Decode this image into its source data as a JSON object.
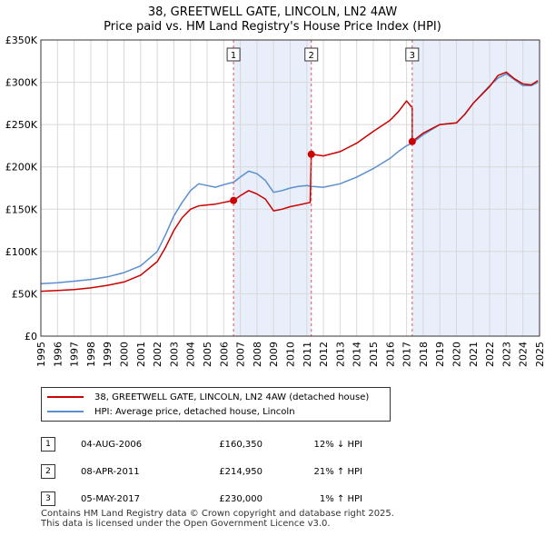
{
  "title": {
    "line1": "38, GREETWELL GATE, LINCOLN, LN2 4AW",
    "line2": "Price paid vs. HM Land Registry's House Price Index (HPI)"
  },
  "chart_data": {
    "type": "line",
    "title": "38, GREETWELL GATE, LINCOLN, LN2 4AW",
    "subtitle": "Price paid vs. HM Land Registry's House Price Index (HPI)",
    "xlabel": "",
    "ylabel": "",
    "xlim": [
      1995,
      2025
    ],
    "ylim": [
      0,
      350000
    ],
    "x_ticks": [
      "1995",
      "1996",
      "1997",
      "1998",
      "1999",
      "2000",
      "2001",
      "2002",
      "2003",
      "2004",
      "2005",
      "2006",
      "2007",
      "2008",
      "2009",
      "2010",
      "2011",
      "2012",
      "2013",
      "2014",
      "2015",
      "2016",
      "2017",
      "2018",
      "2019",
      "2020",
      "2021",
      "2022",
      "2023",
      "2024",
      "2025"
    ],
    "y_ticks": [
      {
        "value": 0,
        "label": "£0"
      },
      {
        "value": 50000,
        "label": "£50K"
      },
      {
        "value": 100000,
        "label": "£100K"
      },
      {
        "value": 150000,
        "label": "£150K"
      },
      {
        "value": 200000,
        "label": "£200K"
      },
      {
        "value": 250000,
        "label": "£250K"
      },
      {
        "value": 300000,
        "label": "£300K"
      },
      {
        "value": 350000,
        "label": "£350K"
      }
    ],
    "grid": true,
    "series": [
      {
        "name": "38, GREETWELL GATE, LINCOLN, LN2 4AW (detached house)",
        "color": "#cc0000",
        "points": [
          [
            1995,
            53000
          ],
          [
            1996,
            54000
          ],
          [
            1997,
            55000
          ],
          [
            1998,
            57000
          ],
          [
            1999,
            60000
          ],
          [
            2000,
            64000
          ],
          [
            2001,
            72000
          ],
          [
            2002,
            88000
          ],
          [
            2002.5,
            105000
          ],
          [
            2003,
            125000
          ],
          [
            2003.5,
            140000
          ],
          [
            2004,
            150000
          ],
          [
            2004.5,
            154000
          ],
          [
            2005,
            155000
          ],
          [
            2005.5,
            156000
          ],
          [
            2006,
            158000
          ],
          [
            2006.6,
            160350
          ],
          [
            2007,
            166000
          ],
          [
            2007.5,
            172000
          ],
          [
            2008,
            168000
          ],
          [
            2008.5,
            162000
          ],
          [
            2009,
            148000
          ],
          [
            2009.5,
            150000
          ],
          [
            2010,
            153000
          ],
          [
            2010.5,
            155000
          ],
          [
            2011.2,
            158000
          ],
          [
            2011.27,
            214950
          ],
          [
            2012,
            213000
          ],
          [
            2013,
            218000
          ],
          [
            2014,
            228000
          ],
          [
            2015,
            242000
          ],
          [
            2016,
            255000
          ],
          [
            2016.5,
            265000
          ],
          [
            2017,
            278000
          ],
          [
            2017.34,
            270000
          ],
          [
            2017.34,
            230000
          ],
          [
            2018,
            240000
          ],
          [
            2019,
            250000
          ],
          [
            2020,
            252000
          ],
          [
            2020.5,
            262000
          ],
          [
            2021,
            275000
          ],
          [
            2022,
            295000
          ],
          [
            2022.5,
            308000
          ],
          [
            2023,
            312000
          ],
          [
            2023.5,
            304000
          ],
          [
            2024,
            298000
          ],
          [
            2024.5,
            297000
          ],
          [
            2024.9,
            302000
          ]
        ]
      },
      {
        "name": "HPI: Average price, detached house, Lincoln",
        "color": "#5b8fd0",
        "points": [
          [
            1995,
            62000
          ],
          [
            1996,
            63000
          ],
          [
            1997,
            65000
          ],
          [
            1998,
            67000
          ],
          [
            1999,
            70000
          ],
          [
            2000,
            75000
          ],
          [
            2001,
            83000
          ],
          [
            2002,
            100000
          ],
          [
            2002.5,
            120000
          ],
          [
            2003,
            142000
          ],
          [
            2003.5,
            158000
          ],
          [
            2004,
            172000
          ],
          [
            2004.5,
            180000
          ],
          [
            2005,
            178000
          ],
          [
            2005.5,
            176000
          ],
          [
            2006,
            179000
          ],
          [
            2006.6,
            182000
          ],
          [
            2007,
            188000
          ],
          [
            2007.5,
            195000
          ],
          [
            2008,
            192000
          ],
          [
            2008.5,
            184000
          ],
          [
            2009,
            170000
          ],
          [
            2009.5,
            172000
          ],
          [
            2010,
            175000
          ],
          [
            2010.5,
            177000
          ],
          [
            2011,
            178000
          ],
          [
            2011.27,
            177000
          ],
          [
            2012,
            176000
          ],
          [
            2013,
            180000
          ],
          [
            2014,
            188000
          ],
          [
            2015,
            198000
          ],
          [
            2016,
            210000
          ],
          [
            2016.5,
            218000
          ],
          [
            2017,
            225000
          ],
          [
            2017.34,
            228000
          ],
          [
            2018,
            238000
          ],
          [
            2019,
            250000
          ],
          [
            2020,
            252000
          ],
          [
            2020.5,
            262000
          ],
          [
            2021,
            275000
          ],
          [
            2022,
            296000
          ],
          [
            2022.5,
            305000
          ],
          [
            2023,
            310000
          ],
          [
            2023.5,
            303000
          ],
          [
            2024,
            296000
          ],
          [
            2024.5,
            296000
          ],
          [
            2024.9,
            300000
          ]
        ]
      }
    ],
    "shaded_ranges": [
      [
        2006.59,
        2011.27
      ],
      [
        2017.34,
        2025
      ]
    ],
    "sale_markers": [
      {
        "label": "1",
        "x": 2006.59,
        "value": 160350
      },
      {
        "label": "2",
        "x": 2011.27,
        "value": 214950
      },
      {
        "label": "3",
        "x": 2017.34,
        "value": 230000
      }
    ]
  },
  "legend": {
    "property_label": "38, GREETWELL GATE, LINCOLN, LN2 4AW (detached house)",
    "hpi_label": "HPI: Average price, detached house, Lincoln",
    "property_color": "#cc0000",
    "hpi_color": "#5b8fd0"
  },
  "sales": [
    {
      "num": "1",
      "date": "04-AUG-2006",
      "price": "£160,350",
      "hpi": "12% ↓ HPI"
    },
    {
      "num": "2",
      "date": "08-APR-2011",
      "price": "£214,950",
      "hpi": "21% ↑ HPI"
    },
    {
      "num": "3",
      "date": "05-MAY-2017",
      "price": "£230,000",
      "hpi": "1% ↑ HPI"
    }
  ],
  "footer": {
    "line1": "Contains HM Land Registry data © Crown copyright and database right 2025.",
    "line2": "This data is licensed under the Open Government Licence v3.0."
  }
}
